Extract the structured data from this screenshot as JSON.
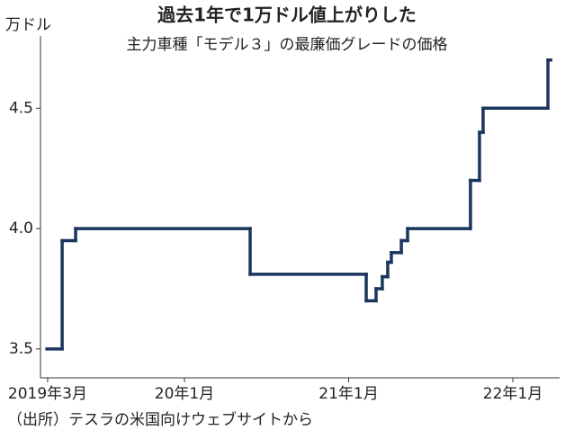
{
  "chart_data": {
    "type": "step",
    "title": "過去1年で1万ドル値上がりした",
    "subtitle": "主力車種「モデル３」の最廉価グレードの価格",
    "y_unit": "万ドル",
    "source": "（出所）テスラの米国向けウェブサイトから",
    "step": "post",
    "x": [
      2019.162,
      2019.255,
      2019.337,
      2020.4,
      2021.107,
      2021.167,
      2021.205,
      2021.238,
      2021.26,
      2021.321,
      2021.359,
      2021.742,
      2021.797,
      2021.819,
      2022.214,
      2022.23
    ],
    "values": [
      3.5,
      3.95,
      4.0,
      3.81,
      3.7,
      3.75,
      3.8,
      3.86,
      3.9,
      3.95,
      4.0,
      4.2,
      4.4,
      4.5,
      4.7,
      4.7
    ],
    "color": "#1b365d",
    "xlim": [
      2019.123,
      2022.285
    ],
    "xticks": [
      {
        "value": 2019.1667,
        "label": "2019年3月"
      },
      {
        "value": 2020,
        "label": "20年1月"
      },
      {
        "value": 2021,
        "label": "21年1月"
      },
      {
        "value": 2022,
        "label": "22年1月"
      }
    ],
    "ylim": [
      3.38,
      4.8
    ],
    "yticks": [
      3.5,
      {
        "value": 4.0,
        "label": "4.0"
      },
      4.5
    ]
  }
}
